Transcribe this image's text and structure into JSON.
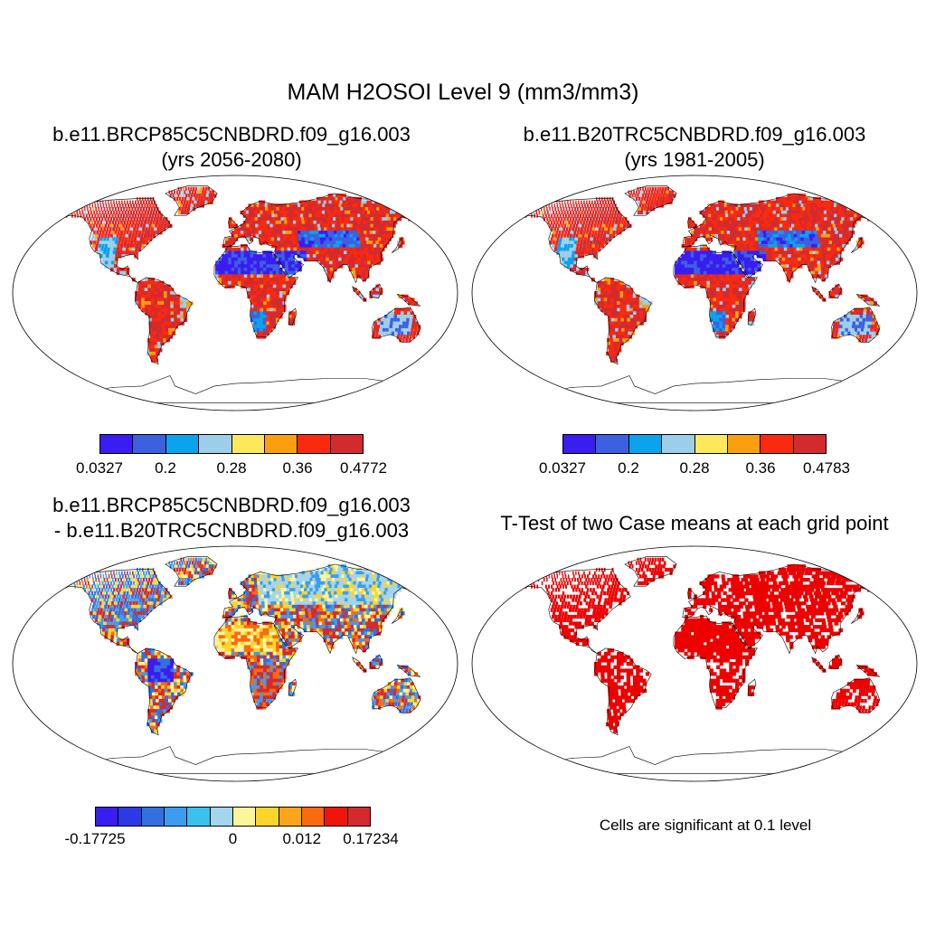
{
  "title": "MAM H2OSOI Level 9 (mm3/mm3)",
  "panels": [
    {
      "title_line1": "b.e11.BRCP85C5CNBDRD.f09_g16.003",
      "title_line2": "(yrs 2056-2080)",
      "colorbar": {
        "colors": [
          "#3a1df0",
          "#3c60e0",
          "#0ba2ee",
          "#9ccde9",
          "#fbe85c",
          "#fb9f0f",
          "#fb2a0e",
          "#d42a2e"
        ],
        "labels": [
          "0.0327",
          "0.2",
          "0.28",
          "0.36",
          "0.4772"
        ]
      }
    },
    {
      "title_line1": "b.e11.B20TRC5CNBDRD.f09_g16.003",
      "title_line2": "(yrs 1981-2005)",
      "colorbar": {
        "colors": [
          "#3a1df0",
          "#3c60e0",
          "#0ba2ee",
          "#9ccde9",
          "#fbe85c",
          "#fb9f0f",
          "#fb2a0e",
          "#d42a2e"
        ],
        "labels": [
          "0.0327",
          "0.2",
          "0.28",
          "0.36",
          "0.4783"
        ]
      }
    },
    {
      "title_line1": "b.e11.BRCP85C5CNBDRD.f09_g16.003",
      "title_line2": "- b.e11.B20TRC5CNBDRD.f09_g16.003",
      "colorbar": {
        "colors": [
          "#3a1df0",
          "#2a3ae6",
          "#3270e0",
          "#3c9df0",
          "#3cc0f0",
          "#a5d5ec",
          "#fdf59a",
          "#fbd52c",
          "#fba51c",
          "#fb6a0e",
          "#f0140a",
          "#d42a2e"
        ],
        "labels": [
          "-0.17725",
          "0",
          "0.012",
          "0.17234"
        ]
      }
    },
    {
      "title_line1": "T-Test of two Case means at each grid point",
      "note": "Cells are significant at 0.1 level"
    }
  ],
  "map_style": {
    "projection": "Robinson",
    "ocean": "#ffffff",
    "coastline": "#000000",
    "panel_a_palette": [
      "#d42a2e",
      "#fb2a0e",
      "#fb9f0f",
      "#9ccde9",
      "#0ba2ee",
      "#3c60e0",
      "#3a1df0"
    ],
    "panel_b_palette": [
      "#d42a2e",
      "#fb2a0e",
      "#fb9f0f",
      "#9ccde9",
      "#0ba2ee",
      "#3c60e0",
      "#3a1df0"
    ],
    "panel_c_palette": [
      "#d42a2e",
      "#fb6a0e",
      "#fbd52c",
      "#fdf59a",
      "#a5d5ec",
      "#3c9df0",
      "#3270e0",
      "#3a1df0"
    ],
    "panel_d_color": "#ee0000"
  }
}
